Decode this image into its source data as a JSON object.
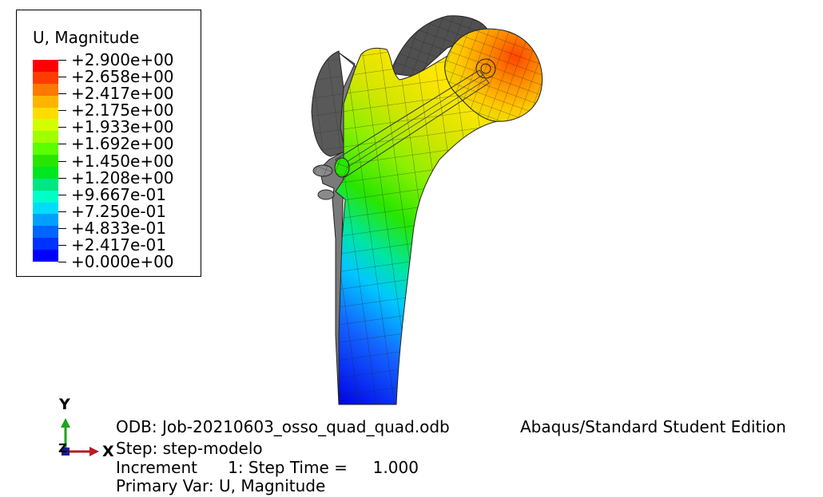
{
  "legend": {
    "title": "U, Magnitude",
    "labels": [
      "+2.900e+00",
      "+2.658e+00",
      "+2.417e+00",
      "+2.175e+00",
      "+1.933e+00",
      "+1.692e+00",
      "+1.450e+00",
      "+1.208e+00",
      "+9.667e-01",
      "+7.250e-01",
      "+4.833e-01",
      "+2.417e-01",
      "+0.000e+00"
    ],
    "colors": [
      "#ff0000",
      "#ff3c00",
      "#ff7800",
      "#ffb400",
      "#ffdc00",
      "#d2ff00",
      "#a0ff00",
      "#5aff00",
      "#28e600",
      "#00e61e",
      "#00e682",
      "#00ffc8",
      "#00dcff",
      "#00a0ff",
      "#0064ff",
      "#0032ff",
      "#0000ff"
    ]
  },
  "triad": {
    "y": "Y",
    "x": "X",
    "z": "Z"
  },
  "info": {
    "odb": "ODB: Job-20210603_osso_quad_quad.odb",
    "edition": "Abaqus/Standard Student Edition",
    "step": "Step: step-modelo",
    "increment": "Increment      1: Step Time =     1.000",
    "primary_var": "Primary Var: U, Magnitude"
  }
}
